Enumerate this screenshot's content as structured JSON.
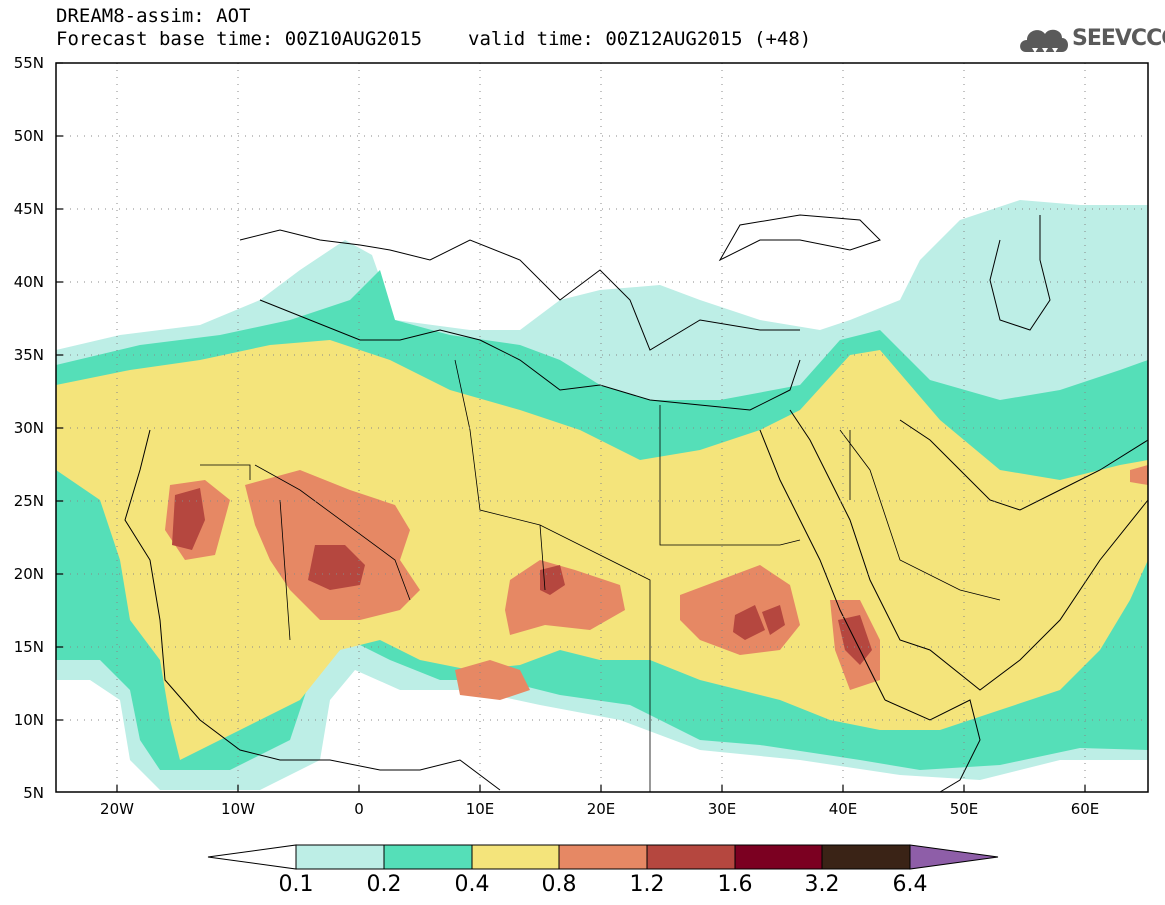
{
  "header": {
    "title_line1": "DREAM8-assim: AOT",
    "base_time": "Forecast base time: 00Z10AUG2015",
    "valid_time": "valid time: 00Z12AUG2015 (+48)",
    "logo_text": "SEEVCCC"
  },
  "map": {
    "lon_range": [
      -25,
      65
    ],
    "lat_range": [
      5,
      55
    ],
    "lat_labels": [
      "55N",
      "50N",
      "45N",
      "40N",
      "35N",
      "30N",
      "25N",
      "20N",
      "15N",
      "10N",
      "5N"
    ],
    "lon_labels": [
      "20W",
      "10W",
      "0",
      "10E",
      "20E",
      "30E",
      "40E",
      "50E",
      "60E"
    ]
  },
  "colorbar": {
    "labels": [
      "0.1",
      "0.2",
      "0.4",
      "0.8",
      "1.2",
      "1.6",
      "3.2",
      "6.4"
    ],
    "colors": [
      "#ffffff",
      "#bdeee6",
      "#55dfb8",
      "#f4e47b",
      "#e68864",
      "#b5473f",
      "#7b0021",
      "#3a2316",
      "#8e5ea8"
    ]
  }
}
